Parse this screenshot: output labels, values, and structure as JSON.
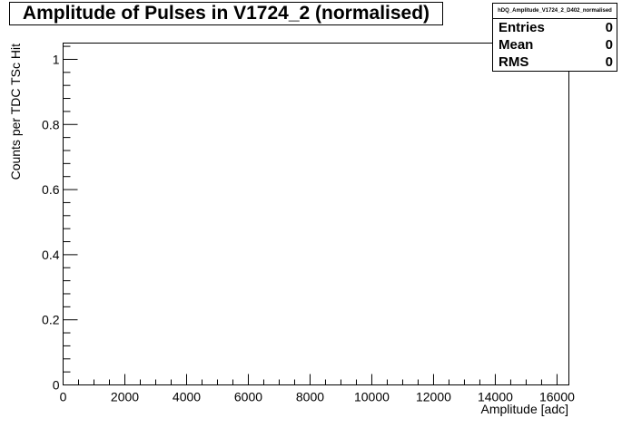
{
  "chart_data": {
    "type": "histogram",
    "title": "Amplitude of Pulses in V1724_2 (normalised)",
    "xlabel": "Amplitude [adc]",
    "ylabel": "Counts per TDC TSc Hit",
    "xlim": [
      0,
      16384
    ],
    "ylim": [
      0,
      1.05
    ],
    "x_ticks": [
      0,
      2000,
      4000,
      6000,
      8000,
      10000,
      12000,
      14000,
      16000
    ],
    "y_ticks": [
      0,
      0.2,
      0.4,
      0.6,
      0.8,
      1
    ],
    "x_tick_labels": [
      "0",
      "2000",
      "4000",
      "6000",
      "8000",
      "10000",
      "12000",
      "14000",
      "16000"
    ],
    "y_tick_labels": [
      "0",
      "0.2",
      "0.4",
      "0.6",
      "0.8",
      "1"
    ],
    "series": [],
    "grid": false
  },
  "stats": {
    "name": "hDQ_Amplitude_V1724_2_D402_normalised",
    "rows": [
      {
        "label": "Entries",
        "value": "0"
      },
      {
        "label": "Mean",
        "value": "0"
      },
      {
        "label": "RMS",
        "value": "0"
      }
    ]
  }
}
